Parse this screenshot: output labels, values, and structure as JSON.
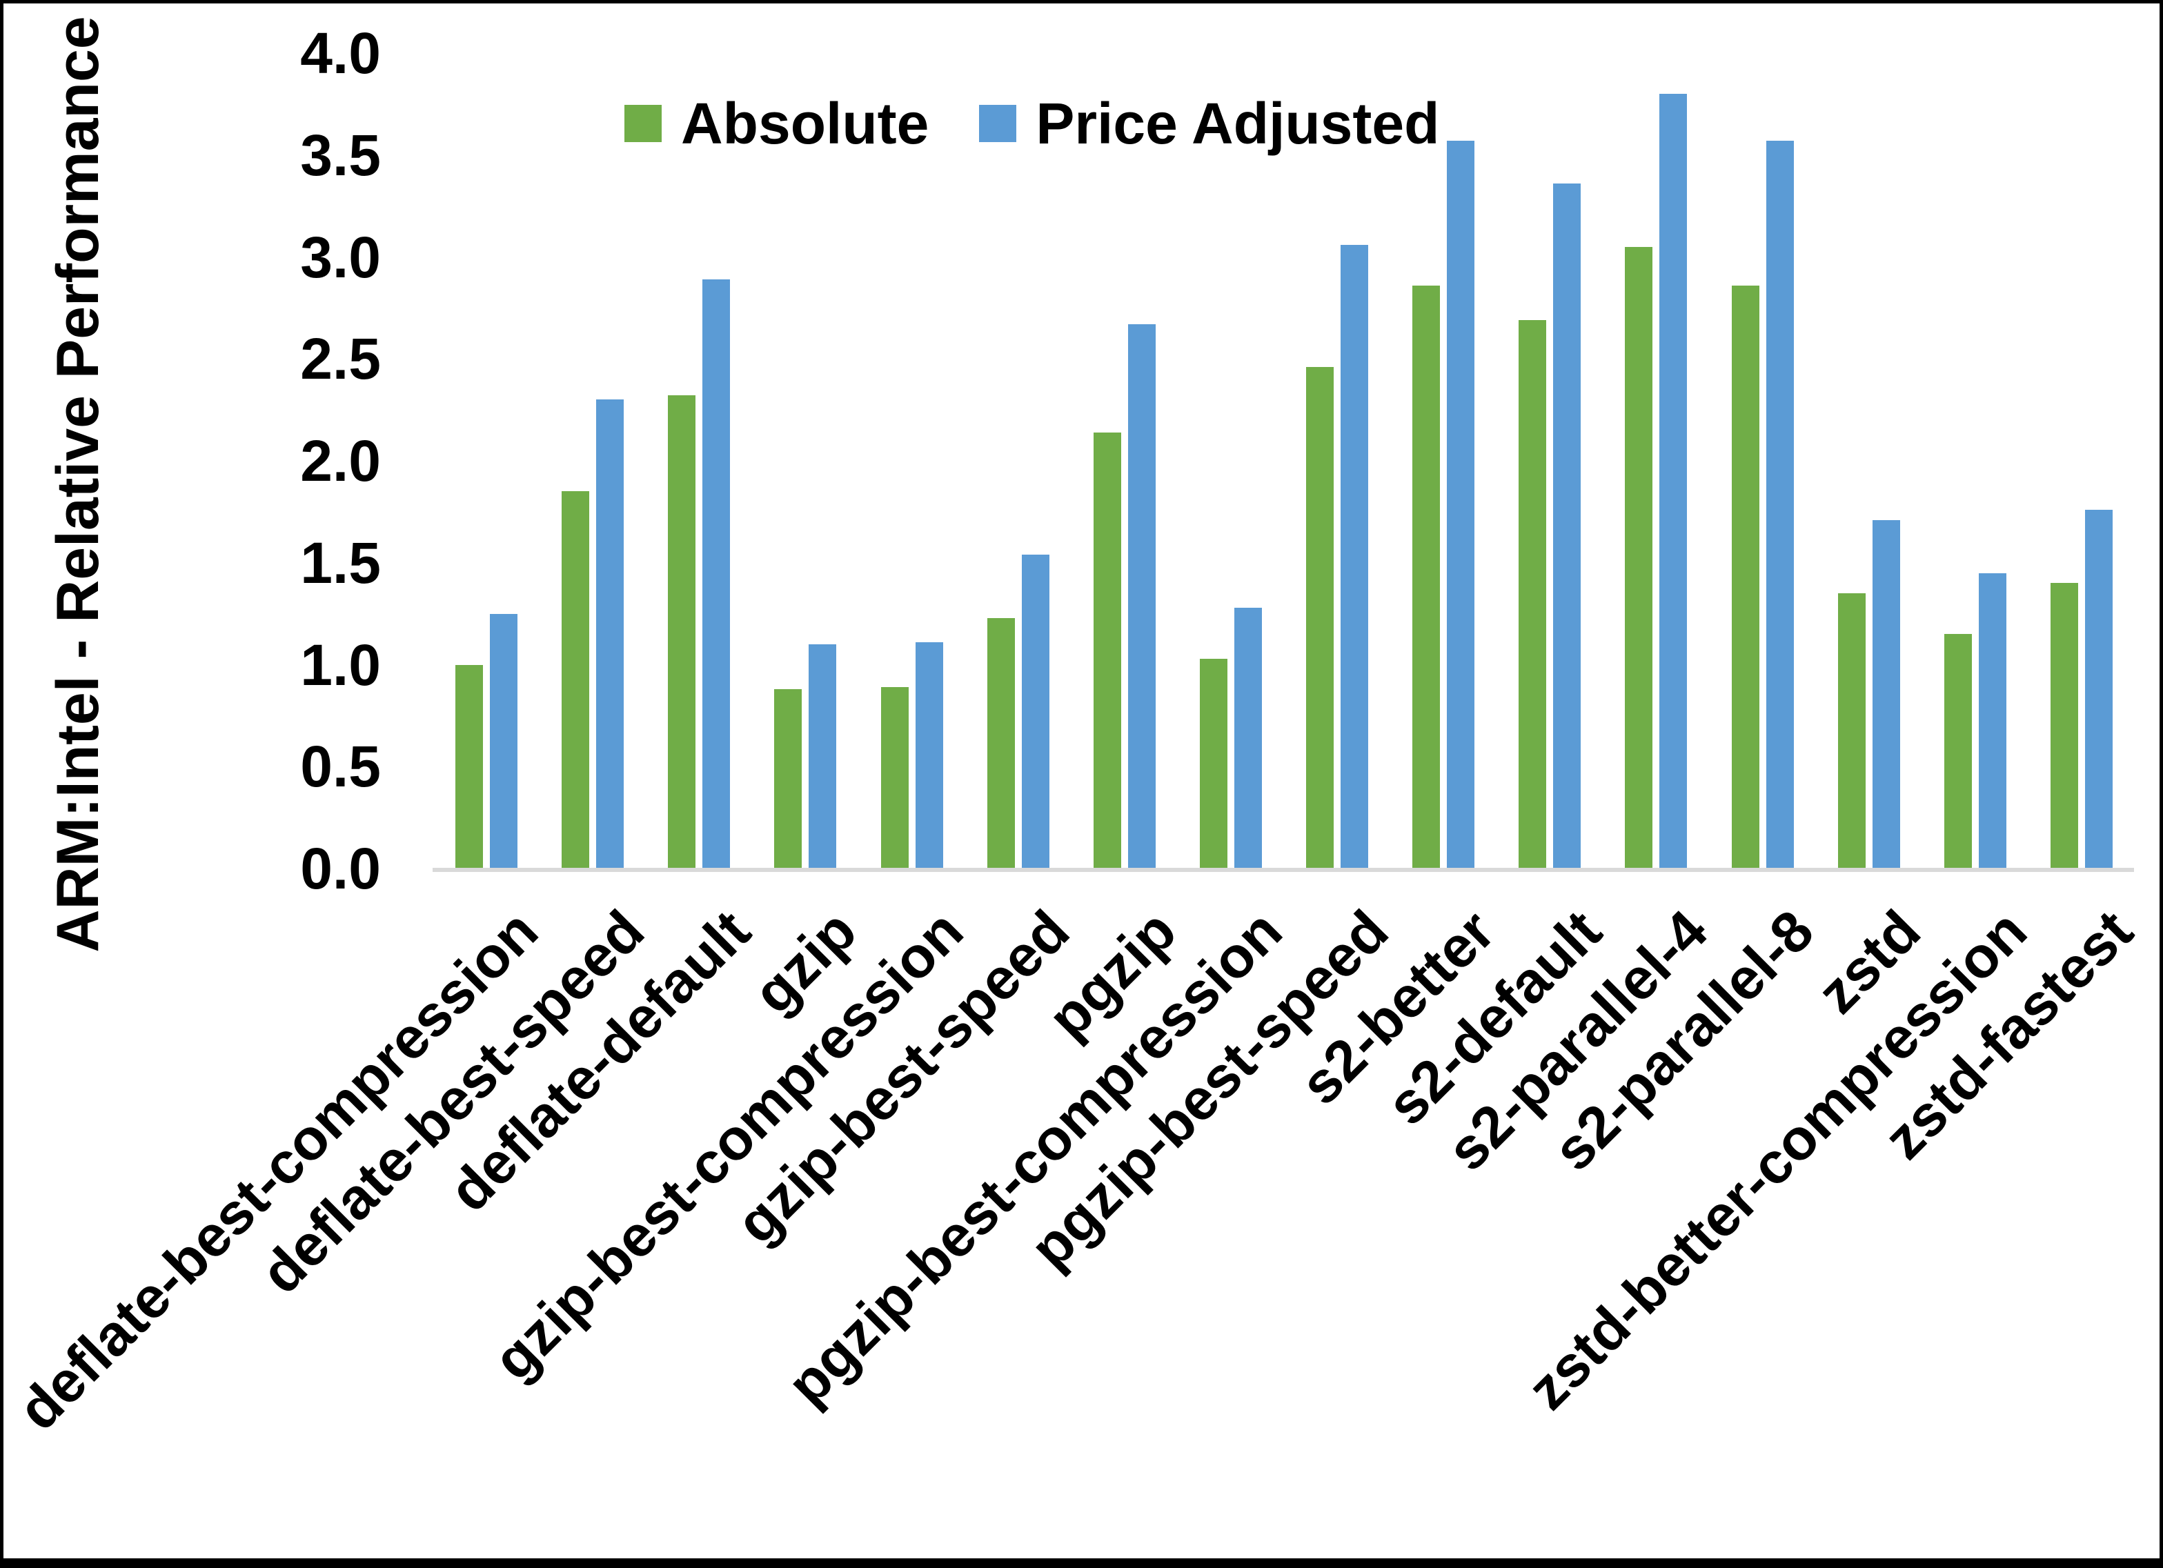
{
  "chart_data": {
    "type": "bar",
    "title": "",
    "ylabel": "ARM:Intel - Relative Performance",
    "xlabel": "",
    "ylim": [
      0.0,
      4.0
    ],
    "ytick_step": 0.5,
    "ytick_labels": [
      "0.0",
      "0.5",
      "1.0",
      "1.5",
      "2.0",
      "2.5",
      "3.0",
      "3.5",
      "4.0"
    ],
    "grid": false,
    "legend_position": "top",
    "axis_line_color": "#d9d9d9",
    "categories": [
      "deflate-best-compression",
      "deflate-best-speed",
      "deflate-default",
      "gzip",
      "gzip-best-compression",
      "gzip-best-speed",
      "pgzip",
      "pgzip-best-compression",
      "pgzip-best-speed",
      "s2-better",
      "s2-default",
      "s2-parallel-4",
      "s2-parallel-8",
      "zstd",
      "zstd-better-compression",
      "zstd-fastest"
    ],
    "series": [
      {
        "name": "Absolute",
        "color": "#70AD47",
        "values": [
          1.0,
          1.85,
          2.32,
          0.88,
          0.89,
          1.23,
          2.14,
          1.03,
          2.46,
          2.86,
          2.69,
          3.05,
          2.86,
          1.35,
          1.15,
          1.4
        ]
      },
      {
        "name": "Price Adjusted",
        "color": "#5B9BD5",
        "values": [
          1.25,
          2.3,
          2.89,
          1.1,
          1.11,
          1.54,
          2.67,
          1.28,
          3.06,
          3.57,
          3.36,
          3.8,
          3.57,
          1.71,
          1.45,
          1.76
        ]
      }
    ]
  }
}
